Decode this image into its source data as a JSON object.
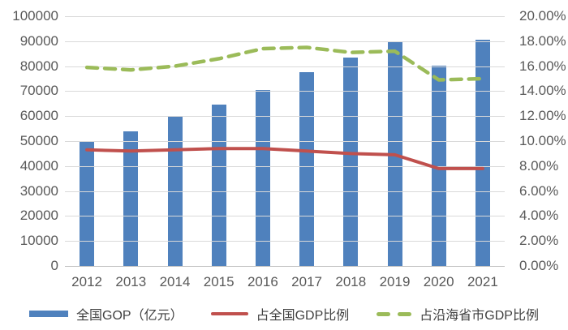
{
  "chart_data": {
    "type": "combo-bar-line",
    "title": "",
    "categories": [
      "2012",
      "2013",
      "2014",
      "2015",
      "2016",
      "2017",
      "2018",
      "2019",
      "2020",
      "2021"
    ],
    "series": [
      {
        "name": "全国GOP（亿元）",
        "type": "bar",
        "axis": "left",
        "color": "#4f81bd",
        "values": [
          49600,
          54000,
          59700,
          64500,
          70400,
          77500,
          83400,
          89600,
          80100,
          90500
        ]
      },
      {
        "name": "占全国GDP比例",
        "type": "line",
        "style": "solid",
        "axis": "right",
        "color": "#c0504d",
        "values": [
          9.3,
          9.2,
          9.3,
          9.4,
          9.4,
          9.2,
          9.0,
          8.9,
          7.8,
          7.8
        ]
      },
      {
        "name": "占沿海省市GDP比例",
        "type": "line",
        "style": "dashed",
        "axis": "right",
        "color": "#9bbb59",
        "values": [
          15.9,
          15.7,
          16.0,
          16.6,
          17.4,
          17.5,
          17.1,
          17.2,
          14.9,
          15.0
        ]
      }
    ],
    "left_axis": {
      "min": 0,
      "max": 100000,
      "step": 10000,
      "labels": [
        "100000",
        "90000",
        "80000",
        "70000",
        "60000",
        "50000",
        "40000",
        "30000",
        "20000",
        "10000",
        "0"
      ]
    },
    "right_axis": {
      "min": 0,
      "max": 20,
      "step": 2,
      "labels": [
        "20.00%",
        "18.00%",
        "16.00%",
        "14.00%",
        "12.00%",
        "10.00%",
        "8.00%",
        "6.00%",
        "4.00%",
        "2.00%",
        "0.00%"
      ]
    },
    "grid": true,
    "legend_position": "bottom",
    "colors": {
      "gridline": "#d9d9d9",
      "axis_text": "#595959",
      "legend_text": "#404040"
    }
  }
}
